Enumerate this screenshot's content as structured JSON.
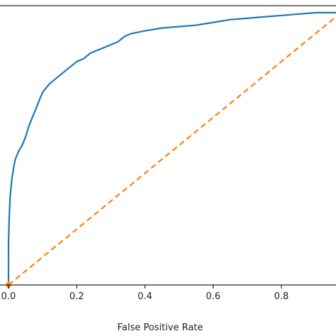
{
  "chart_data": {
    "type": "line",
    "title": "",
    "xlabel": "False Positive Rate",
    "ylabel": "",
    "xlim": [
      0.0,
      0.96
    ],
    "ylim": [
      0.0,
      1.0
    ],
    "x_ticks": [
      "0.0",
      "0.2",
      "0.4",
      "0.6",
      "0.8"
    ],
    "x_tick_values": [
      0.0,
      0.2,
      0.4,
      0.6,
      0.8
    ],
    "grid": false,
    "series": [
      {
        "color": "#1f77b4",
        "style": "solid",
        "x": [
          0.0,
          0.0,
          0.002,
          0.005,
          0.01,
          0.015,
          0.02,
          0.03,
          0.04,
          0.05,
          0.06,
          0.07,
          0.08,
          0.09,
          0.1,
          0.12,
          0.14,
          0.16,
          0.18,
          0.2,
          0.22,
          0.24,
          0.26,
          0.28,
          0.3,
          0.32,
          0.34,
          0.36,
          0.4,
          0.45,
          0.5,
          0.55,
          0.6,
          0.65,
          0.7,
          0.75,
          0.8,
          0.85,
          0.9,
          0.96
        ],
        "y": [
          0.0,
          0.15,
          0.24,
          0.32,
          0.38,
          0.42,
          0.45,
          0.48,
          0.5,
          0.53,
          0.57,
          0.6,
          0.63,
          0.66,
          0.69,
          0.72,
          0.74,
          0.76,
          0.78,
          0.8,
          0.81,
          0.83,
          0.84,
          0.85,
          0.86,
          0.87,
          0.89,
          0.9,
          0.91,
          0.92,
          0.925,
          0.93,
          0.94,
          0.95,
          0.955,
          0.96,
          0.965,
          0.97,
          0.975,
          0.975
        ]
      },
      {
        "color": "#ff7f0e",
        "style": "dashed",
        "x": [
          0.0,
          0.96
        ],
        "y": [
          0.0,
          0.96
        ]
      }
    ],
    "markers": [
      {
        "x": 0.0,
        "y": 0.0,
        "shape": "diamond",
        "color": "#ff7f0e"
      }
    ]
  }
}
